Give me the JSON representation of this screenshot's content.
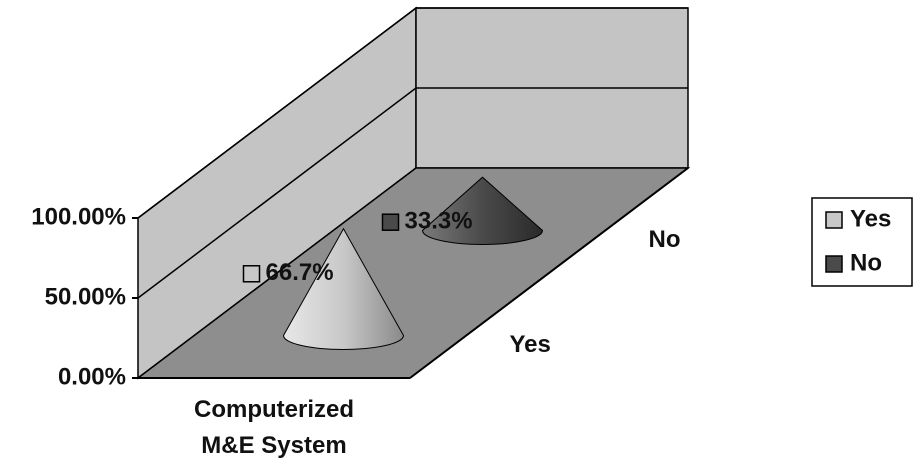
{
  "chart_data": {
    "type": "cone",
    "categories": [
      "Computerized M&E System"
    ],
    "series": [
      {
        "name": "Yes",
        "color": "#c8c8c8",
        "values": [
          66.7
        ],
        "value_labels": [
          "66.7%"
        ]
      },
      {
        "name": "No",
        "color": "#4a4a4a",
        "values": [
          33.3
        ],
        "value_labels": [
          "33.3%"
        ]
      }
    ],
    "ylim": [
      0,
      100
    ],
    "yticks": [
      {
        "value": 0,
        "label": "0.00%"
      },
      {
        "value": 50,
        "label": "50.00%"
      },
      {
        "value": 100,
        "label": "100.00%"
      }
    ],
    "grid": true,
    "legend": "right"
  }
}
